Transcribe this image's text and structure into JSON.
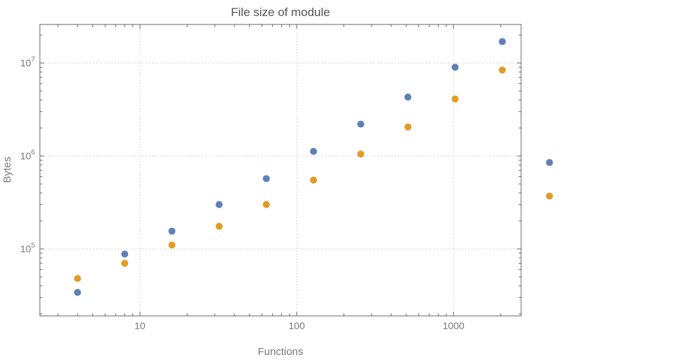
{
  "chart_data": {
    "type": "scatter",
    "title": "File size of module",
    "xlabel": "Functions",
    "ylabel": "Bytes",
    "x_scale": "log",
    "y_scale": "log",
    "xlim": [
      2.3,
      2700
    ],
    "ylim": [
      19000,
      26000000
    ],
    "grid": "dotted-major",
    "legend": "none",
    "clip_points": false,
    "x": [
      4,
      8,
      16,
      32,
      64,
      128,
      256,
      512,
      1024,
      2048,
      4096
    ],
    "series": [
      {
        "name": "series-1",
        "color": "#5e81b5",
        "values": [
          34000,
          88000,
          155000,
          300000,
          570000,
          1120000,
          2200000,
          4300000,
          9000000,
          17000000,
          850000
        ]
      },
      {
        "name": "series-2",
        "color": "#e19c24",
        "values": [
          48000,
          70000,
          110000,
          175000,
          300000,
          550000,
          1050000,
          2050000,
          4100000,
          8400000,
          370000
        ]
      }
    ],
    "x_ticks": [
      {
        "value": 10,
        "label": "10"
      },
      {
        "value": 100,
        "label": "100"
      },
      {
        "value": 1000,
        "label": "1000"
      }
    ],
    "y_ticks": [
      {
        "value": 100000,
        "base": "10",
        "exp": "5"
      },
      {
        "value": 1000000,
        "base": "10",
        "exp": "6"
      },
      {
        "value": 10000000,
        "base": "10",
        "exp": "7"
      }
    ],
    "colors": {
      "background": "#ffffff",
      "frame": "#646464",
      "grid": "#b8b8b8",
      "tick": "#646464",
      "tick_label": "#777777",
      "title": "#545454",
      "axis_label": "#777777"
    }
  }
}
